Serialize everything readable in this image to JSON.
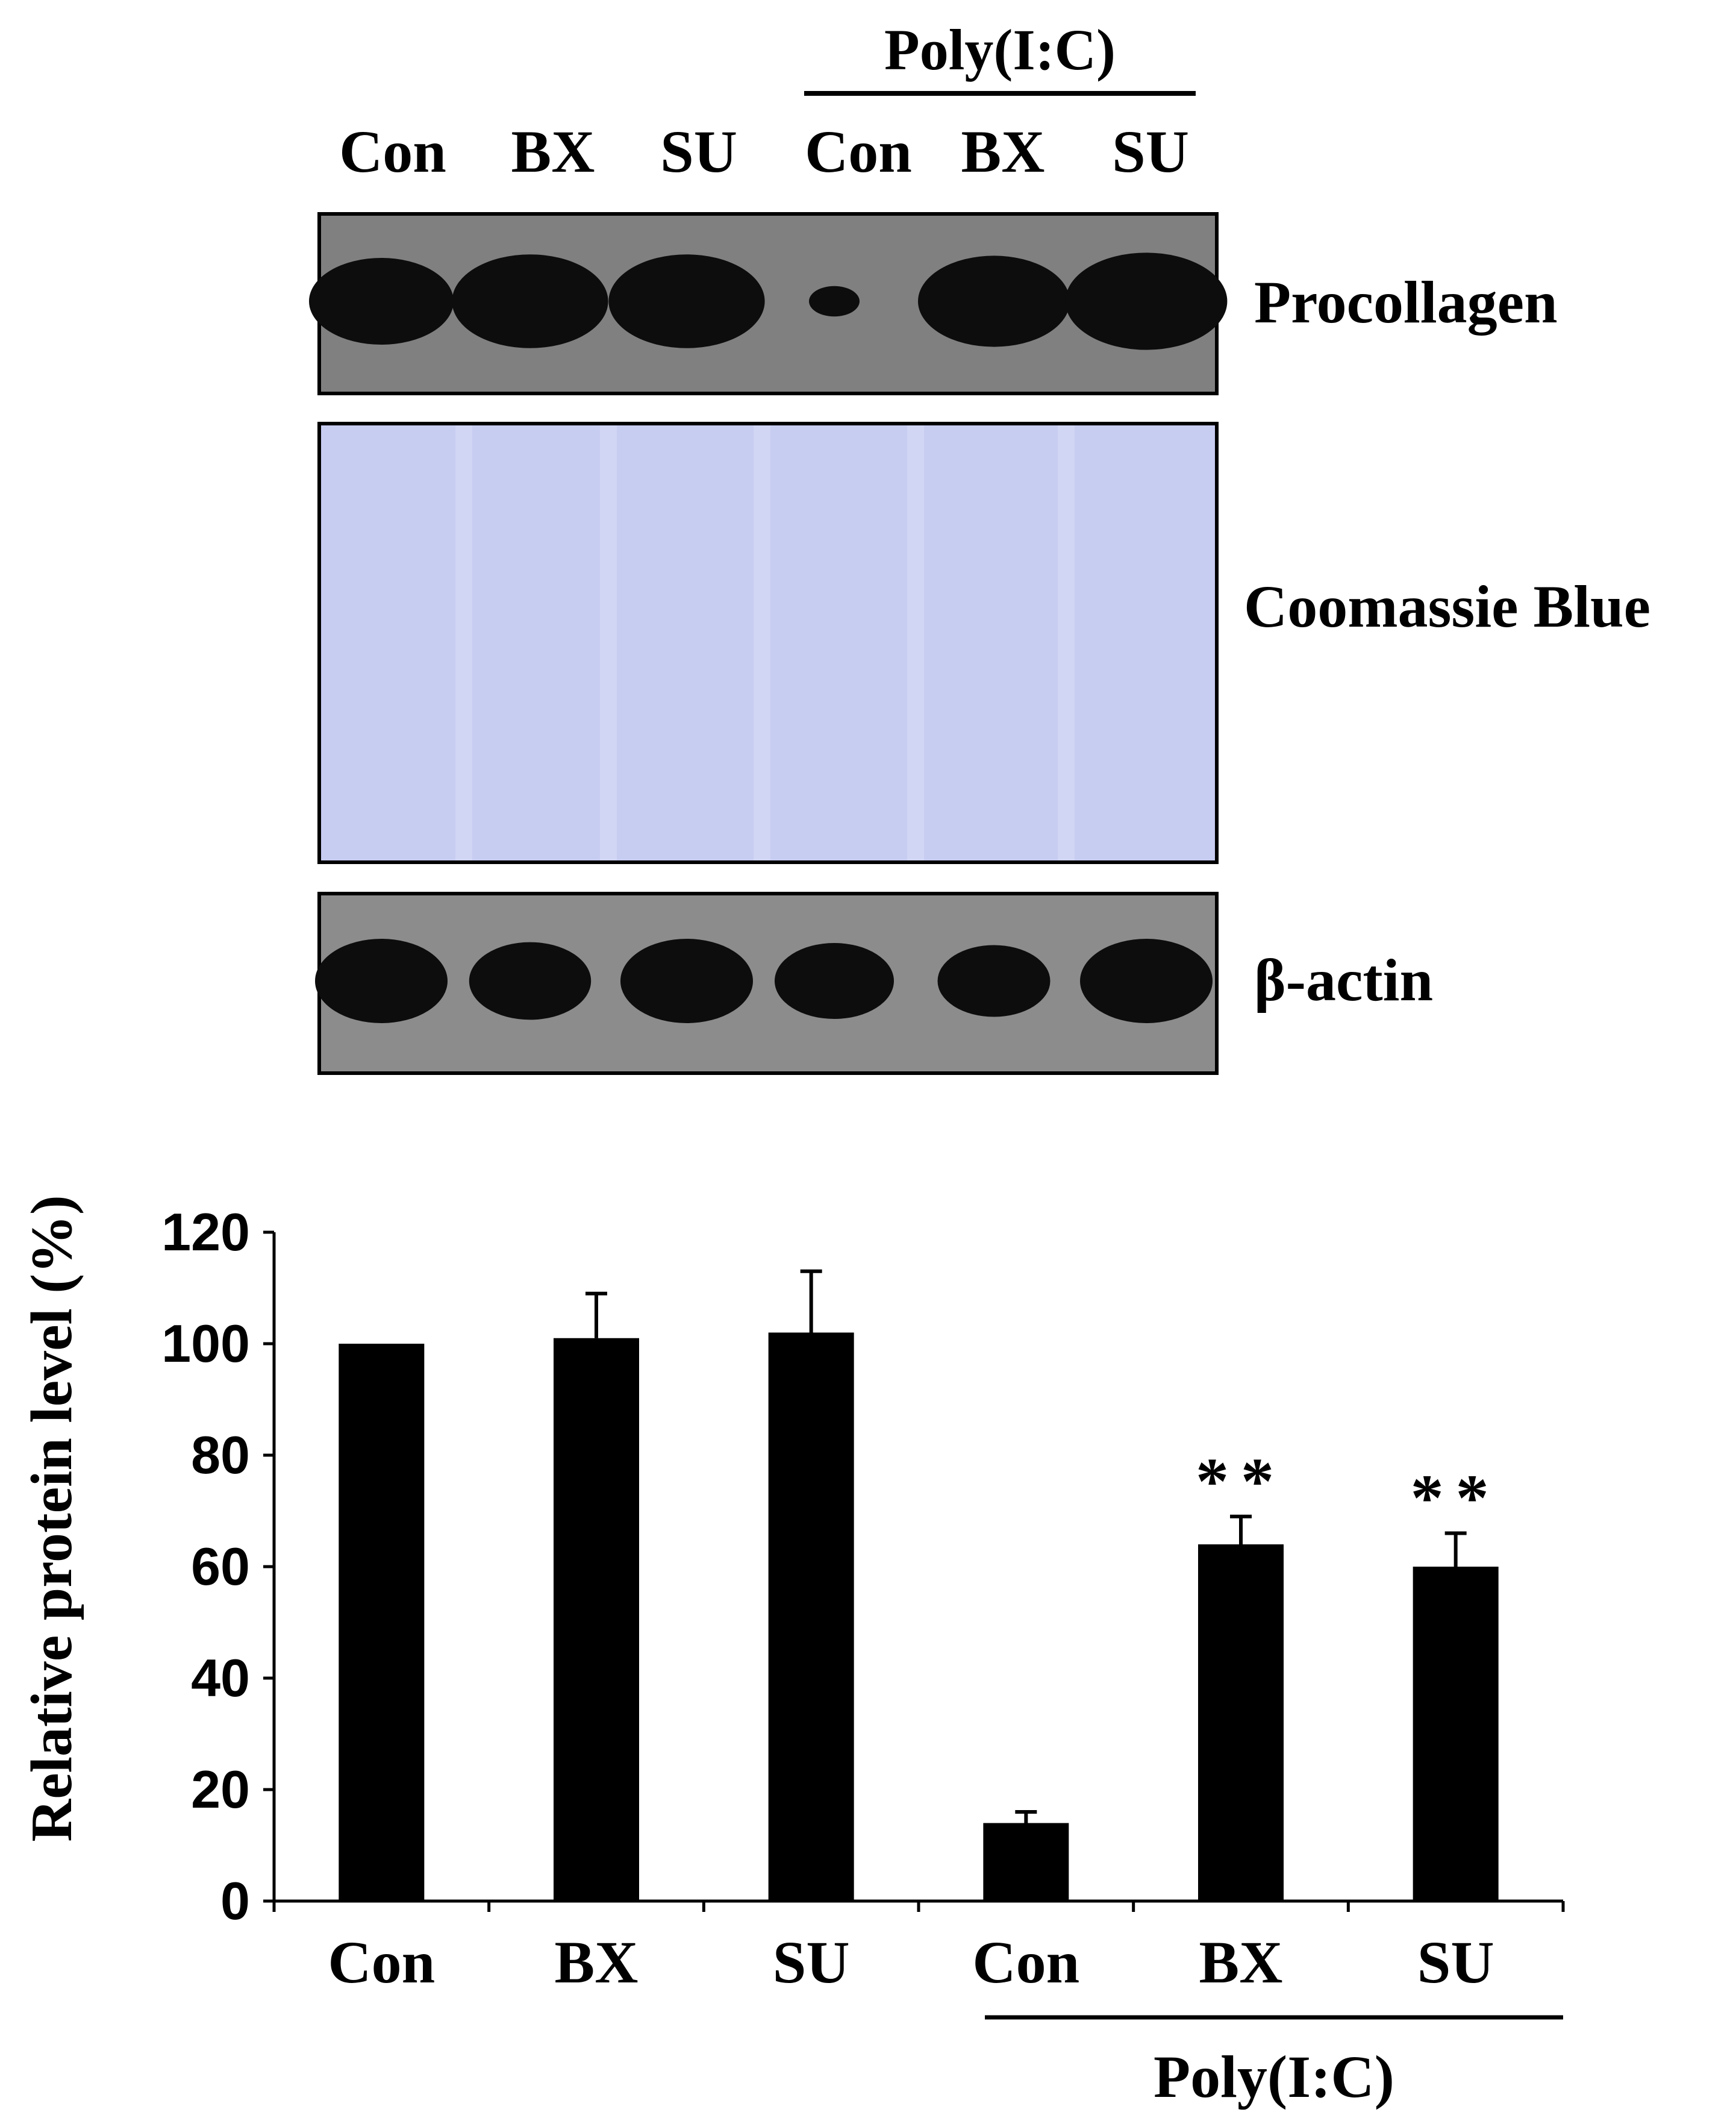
{
  "blot": {
    "treatment_label": "Poly(I:C)",
    "lane_labels": [
      "Con",
      "BX",
      "SU",
      "Con",
      "BX",
      "SU"
    ],
    "panels": [
      {
        "label": "Procollagen",
        "background": "#808080",
        "band_color": "#0d0d0d",
        "band_intensity": [
          1.0,
          1.08,
          1.08,
          0.35,
          1.05,
          1.12
        ]
      },
      {
        "label": "Coomassie Blue",
        "background": "#c7ccf1"
      },
      {
        "label": "β-actin",
        "background": "#8c8c8c",
        "band_color": "#0d0d0d",
        "band_intensity": [
          1.0,
          0.92,
          1.0,
          0.9,
          0.85,
          1.0
        ]
      }
    ]
  },
  "chart_data": {
    "type": "bar",
    "categories": [
      "Con",
      "BX",
      "SU",
      "Con",
      "BX",
      "SU"
    ],
    "values": [
      100,
      101,
      102,
      14,
      64,
      60
    ],
    "errors": [
      0,
      8,
      11,
      2,
      5,
      6
    ],
    "significance": [
      "",
      "",
      "",
      "",
      "**",
      "**"
    ],
    "group_label": "Poly(I:C)",
    "ylabel": "Relative protein level (%)",
    "ylim": [
      0,
      120
    ],
    "yticks": [
      0,
      20,
      40,
      60,
      80,
      100,
      120
    ],
    "bar_color": "#000000",
    "grid": false
  }
}
